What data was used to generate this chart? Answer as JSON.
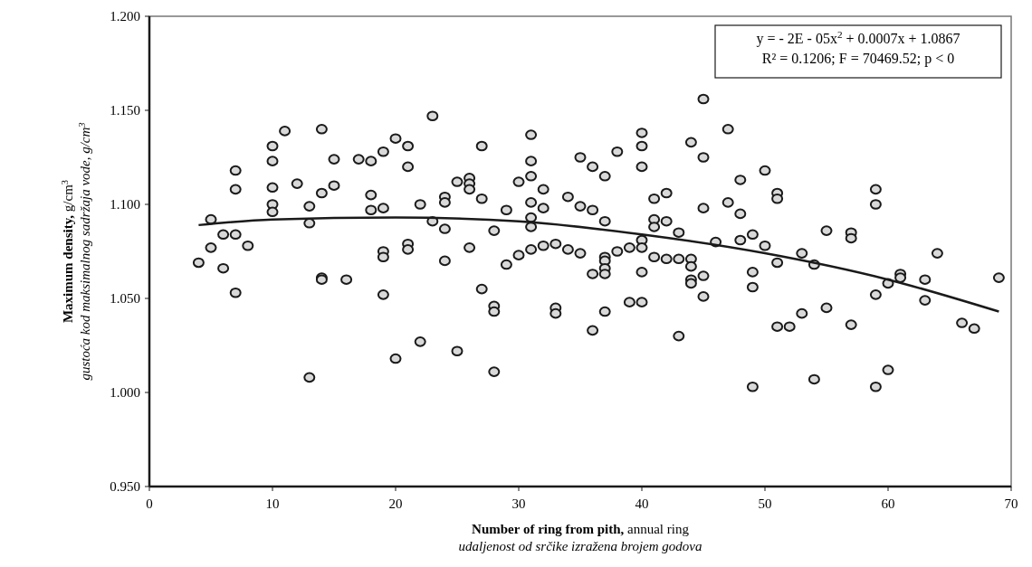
{
  "chart_data": {
    "type": "scatter",
    "xlabel": "Number of ring from pith, annual ring\nudaljenost od srčike izražena brojem godova",
    "ylabel": "Maximum density, g/cm$^{3}$\ngustoća kod maksimalnog sadržaja vode, g/cm$^{3}$",
    "annotations": [
      "y = - 2E - 05x$^{2}$ + 0.0007x + 1.0867",
      "R² = 0.1206; F = 70469.52; p < 0"
    ],
    "xlim": [
      0,
      70
    ],
    "xticks": [
      0,
      10,
      20,
      30,
      40,
      50,
      60,
      70
    ],
    "ylim": [
      0.95,
      1.2
    ],
    "yticks": [
      {
        "value": 0.95,
        "label": "0.950"
      },
      {
        "value": 1.0,
        "label": "1.000"
      },
      {
        "value": 1.05,
        "label": "1.050"
      },
      {
        "value": 1.1,
        "label": "1.100"
      },
      {
        "value": 1.15,
        "label": "1.150"
      },
      {
        "value": 1.2,
        "label": "1.200"
      }
    ],
    "grid": false,
    "marker": "circle",
    "series": [
      {
        "color": "#d9d9d9",
        "x": [
          4,
          5,
          5,
          6,
          6,
          7,
          7,
          7,
          7,
          8,
          10,
          10,
          10,
          10,
          10,
          11,
          12,
          13,
          13,
          13,
          14,
          14,
          14,
          14,
          15,
          15,
          16,
          17,
          18,
          18,
          18,
          19,
          19,
          19,
          19,
          19,
          20,
          20,
          21,
          21,
          21,
          21,
          22,
          22,
          23,
          23,
          24,
          24,
          24,
          24,
          25,
          25,
          26,
          26,
          26,
          26,
          27,
          27,
          27,
          28,
          28,
          28,
          28,
          29,
          29,
          30,
          30,
          31,
          31,
          31,
          31,
          31,
          31,
          31,
          32,
          32,
          32,
          33,
          33,
          33,
          34,
          34,
          35,
          35,
          35,
          36,
          36,
          36,
          36,
          37,
          37,
          37,
          37,
          37,
          37,
          37,
          38,
          38,
          39,
          39,
          40,
          40,
          40,
          40,
          40,
          40,
          40,
          41,
          41,
          41,
          41,
          42,
          42,
          42,
          43,
          43,
          43,
          44,
          44,
          44,
          44,
          44,
          45,
          45,
          45,
          45,
          45,
          46,
          47,
          47,
          48,
          48,
          48,
          49,
          49,
          49,
          49,
          50,
          50,
          51,
          51,
          51,
          51,
          52,
          53,
          53,
          54,
          54,
          55,
          55,
          57,
          57,
          57,
          59,
          59,
          59,
          59,
          60,
          60,
          61,
          61,
          63,
          63,
          64,
          66,
          67,
          69
        ],
        "values": [
          1.069,
          1.092,
          1.077,
          1.084,
          1.066,
          1.118,
          1.108,
          1.084,
          1.053,
          1.078,
          1.131,
          1.123,
          1.109,
          1.1,
          1.096,
          1.139,
          1.111,
          1.099,
          1.09,
          1.008,
          1.14,
          1.106,
          1.061,
          1.06,
          1.124,
          1.11,
          1.06,
          1.124,
          1.123,
          1.105,
          1.097,
          1.128,
          1.098,
          1.075,
          1.072,
          1.052,
          1.135,
          1.018,
          1.131,
          1.12,
          1.079,
          1.076,
          1.1,
          1.027,
          1.147,
          1.091,
          1.104,
          1.101,
          1.087,
          1.07,
          1.112,
          1.022,
          1.114,
          1.111,
          1.108,
          1.077,
          1.131,
          1.103,
          1.055,
          1.086,
          1.046,
          1.043,
          1.011,
          1.097,
          1.068,
          1.112,
          1.073,
          1.137,
          1.123,
          1.115,
          1.101,
          1.093,
          1.088,
          1.076,
          1.108,
          1.098,
          1.078,
          1.079,
          1.045,
          1.042,
          1.104,
          1.076,
          1.125,
          1.099,
          1.074,
          1.12,
          1.097,
          1.063,
          1.033,
          1.115,
          1.091,
          1.072,
          1.07,
          1.066,
          1.063,
          1.043,
          1.128,
          1.075,
          1.077,
          1.048,
          1.138,
          1.131,
          1.12,
          1.081,
          1.077,
          1.064,
          1.048,
          1.103,
          1.092,
          1.088,
          1.072,
          1.106,
          1.091,
          1.071,
          1.085,
          1.071,
          1.03,
          1.133,
          1.071,
          1.067,
          1.06,
          1.058,
          1.156,
          1.125,
          1.098,
          1.062,
          1.051,
          1.08,
          1.14,
          1.101,
          1.113,
          1.095,
          1.081,
          1.084,
          1.064,
          1.056,
          1.003,
          1.118,
          1.078,
          1.106,
          1.103,
          1.069,
          1.035,
          1.035,
          1.074,
          1.042,
          1.068,
          1.007,
          1.086,
          1.045,
          1.085,
          1.082,
          1.036,
          1.108,
          1.1,
          1.052,
          1.003,
          1.058,
          1.012,
          1.063,
          1.061,
          1.06,
          1.049,
          1.074,
          1.037,
          1.034,
          1.061
        ]
      },
      {
        "type": "line",
        "color": "#1a1a1a",
        "marker": "none",
        "x": [
          4,
          10,
          20,
          30,
          40,
          50,
          60,
          69
        ],
        "values": [
          1.089,
          1.092,
          1.093,
          1.091,
          1.084,
          1.074,
          1.06,
          1.043
        ]
      }
    ]
  }
}
